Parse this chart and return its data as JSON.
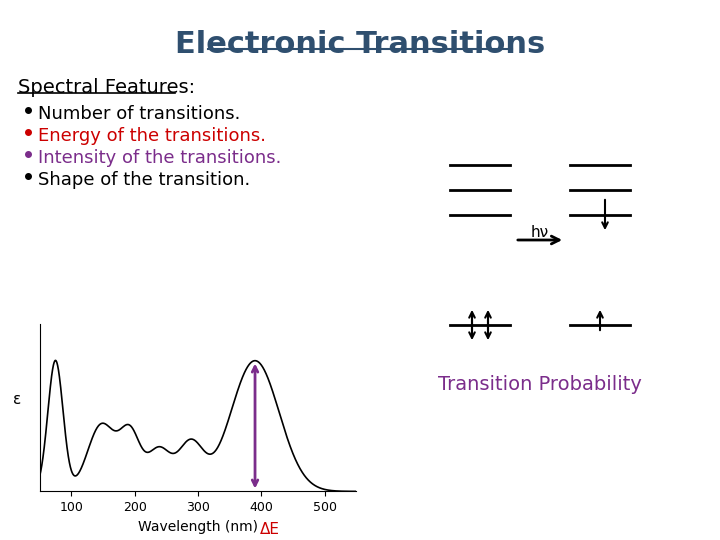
{
  "title": "Electronic Transitions",
  "title_color": "#2F4F6F",
  "title_fontsize": 22,
  "bg_color": "#FFFFFF",
  "spectral_header": "Spectral Features:",
  "spectral_header_color": "#000000",
  "spectral_header_fontsize": 14,
  "bullets": [
    {
      "text": "Number of transitions.",
      "color": "#000000"
    },
    {
      "text": "Energy of the transitions.",
      "color": "#CC0000"
    },
    {
      "text": "Intensity of the transitions.",
      "color": "#7B2D8B"
    },
    {
      "text": "Shape of the transition.",
      "color": "#000000"
    }
  ],
  "bullet_fontsize": 13,
  "transition_probability_text": "Transition Probability",
  "transition_probability_color": "#7B2D8B",
  "transition_probability_fontsize": 14,
  "xlabel": "Wavelength (nm)",
  "delta_e_label": "ΔE",
  "delta_e_color": "#CC0000",
  "epsilon_label": "ε",
  "arrow_double_color": "#7B2D8B",
  "arrow_red_color": "#CC0000",
  "hnu_text": "hν"
}
